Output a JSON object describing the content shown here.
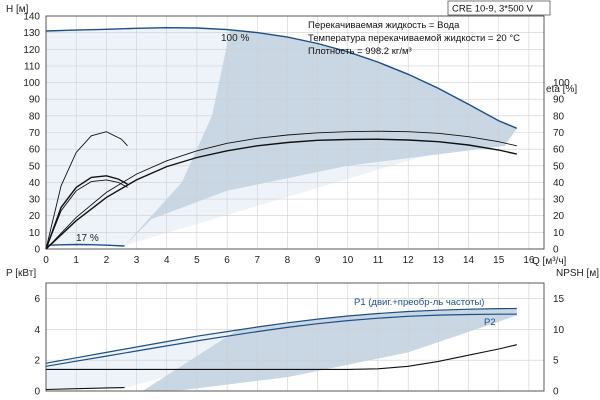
{
  "header": {
    "model": "CRE 10-9, 3*500 V",
    "liquid": "Перекачиваемая жидкость = Вода",
    "temperature": "Температура перекачиваемой жидкости = 20 °C",
    "density": "Плотность = 998.2 кг/м³"
  },
  "chart_data": [
    {
      "type": "line",
      "title": "",
      "xlabel": "Q [м³/ч]",
      "x_ticks": [
        0,
        1,
        2,
        3,
        4,
        5,
        6,
        7,
        8,
        9,
        10,
        11,
        12,
        13,
        14,
        15,
        16
      ],
      "xlim": [
        0,
        16.5
      ],
      "ylabel": "H [м]",
      "y_ticks": [
        0,
        10,
        20,
        30,
        40,
        50,
        60,
        70,
        80,
        90,
        100,
        110,
        120,
        130,
        140
      ],
      "ylim": [
        0,
        140
      ],
      "y2label": "eta [%]",
      "y2_ticks": [
        0,
        10,
        20,
        30,
        40,
        50,
        60,
        70,
        80,
        90,
        100
      ],
      "annotations": [
        "100 %",
        "17 %"
      ],
      "grid": true,
      "series": [
        {
          "x": [
            0,
            1,
            2,
            3,
            4,
            5,
            6,
            7,
            8,
            9,
            10,
            11,
            12,
            13,
            14,
            15,
            15.6
          ],
          "values": [
            131,
            131.5,
            132,
            132.6,
            133,
            132.8,
            131.8,
            130,
            127.3,
            123.5,
            118.5,
            112.3,
            105,
            96.5,
            87,
            77,
            72.5
          ]
        },
        {
          "x": [
            0,
            0.5,
            1,
            1.5,
            2,
            2.6
          ],
          "values": [
            2.3,
            2.5,
            2.7,
            2.6,
            2.3,
            1.8
          ]
        },
        {
          "x": [
            0,
            1,
            2,
            3,
            4,
            5,
            6,
            7,
            8,
            9,
            10,
            11,
            12,
            13,
            14,
            15,
            15.6
          ],
          "values": [
            0,
            19,
            34,
            45,
            53,
            59,
            63.5,
            66.5,
            68.5,
            69.8,
            70.5,
            70.8,
            70.5,
            69.5,
            67.5,
            64.5,
            62
          ]
        },
        {
          "x": [
            0,
            1,
            2,
            3,
            4,
            5,
            6,
            7,
            8,
            9,
            10,
            11,
            12,
            13,
            14,
            15,
            15.6
          ],
          "values": [
            0,
            17,
            31,
            41.5,
            49.5,
            55,
            59,
            62,
            64,
            65.3,
            65.8,
            66,
            65.5,
            64.5,
            62.5,
            59.5,
            57
          ]
        },
        {
          "x": [
            0,
            0.5,
            1,
            1.5,
            2,
            2.5,
            2.7
          ],
          "values": [
            0,
            38,
            58,
            68,
            70.5,
            66,
            62
          ]
        },
        {
          "x": [
            0,
            0.5,
            1,
            1.5,
            2,
            2.4,
            2.7
          ],
          "values": [
            0,
            25,
            37,
            43,
            44,
            42,
            39
          ]
        },
        {
          "x": [
            0,
            0.5,
            1,
            1.5,
            2,
            2.4,
            2.7
          ],
          "values": [
            0,
            23,
            35,
            40.5,
            41.5,
            40,
            37
          ]
        }
      ]
    },
    {
      "type": "line",
      "title": "",
      "ylabel": "P [кВт]",
      "y_ticks": [
        0,
        2,
        4,
        6
      ],
      "ylim": [
        0,
        7
      ],
      "y2label": "NPSH [м]",
      "y2_ticks": [
        0,
        5,
        10,
        15
      ],
      "x_ticks": [
        0,
        1,
        2,
        3,
        4,
        5,
        6,
        7,
        8,
        9,
        10,
        11,
        12,
        13,
        14,
        15,
        16
      ],
      "xlim": [
        0,
        16.5
      ],
      "grid": true,
      "series": [
        {
          "name": "P1 (двиг.+преобр-ль частоты)",
          "x": [
            0,
            1,
            2,
            3,
            4,
            5,
            6,
            7,
            8,
            9,
            10,
            11,
            12,
            13,
            14,
            15,
            15.6
          ],
          "values": [
            1.8,
            2.15,
            2.5,
            2.85,
            3.2,
            3.55,
            3.85,
            4.15,
            4.42,
            4.66,
            4.86,
            5.02,
            5.15,
            5.24,
            5.3,
            5.34,
            5.35
          ]
        },
        {
          "name": "P2",
          "x": [
            0,
            1,
            2,
            3,
            4,
            5,
            6,
            7,
            8,
            9,
            10,
            11,
            12,
            13,
            14,
            15,
            15.6
          ],
          "values": [
            1.6,
            1.93,
            2.26,
            2.59,
            2.92,
            3.25,
            3.55,
            3.85,
            4.12,
            4.36,
            4.56,
            4.72,
            4.84,
            4.92,
            4.96,
            4.98,
            4.98
          ]
        },
        {
          "x": [
            0,
            2,
            4,
            6,
            8,
            10,
            11,
            12,
            13,
            14,
            15,
            15.6
          ],
          "values": [
            3.5,
            3.5,
            3.5,
            3.5,
            3.5,
            3.5,
            3.6,
            4.0,
            4.8,
            5.8,
            6.8,
            7.5
          ]
        },
        {
          "x": [
            0,
            1,
            2,
            2.6
          ],
          "values": [
            0.1,
            0.15,
            0.2,
            0.22
          ]
        }
      ]
    }
  ]
}
